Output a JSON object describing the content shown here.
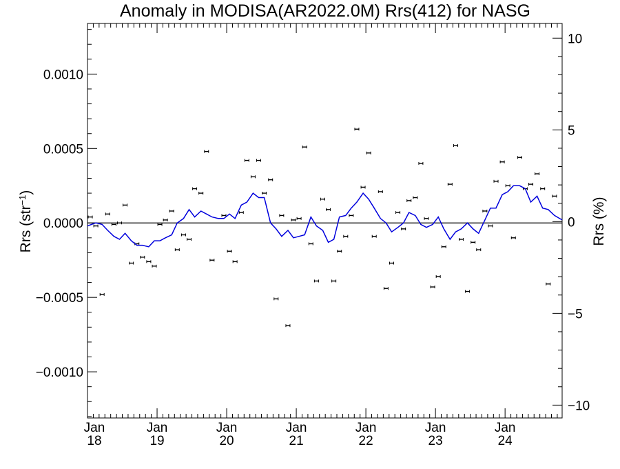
{
  "chart_data": {
    "type": "scatter",
    "title": "Anomaly in MODISA(AR2022.0M) Rrs(412) for NASG",
    "ylabel_left": "Rrs (str⁻¹)",
    "ylabel_right": "Rrs (%)",
    "x_unit": "years since 2018-01",
    "xlim": [
      0,
      6.82
    ],
    "ylim_left": [
      -0.00131,
      0.00134
    ],
    "ylim_right": [
      -10.7,
      10.8
    ],
    "x_ticks": [
      {
        "x": 0,
        "month": "Jan",
        "year": "18"
      },
      {
        "x": 1,
        "month": "Jan",
        "year": "19"
      },
      {
        "x": 2,
        "month": "Jan",
        "year": "20"
      },
      {
        "x": 3,
        "month": "Jan",
        "year": "21"
      },
      {
        "x": 4,
        "month": "Jan",
        "year": "22"
      },
      {
        "x": 5,
        "month": "Jan",
        "year": "23"
      },
      {
        "x": 6,
        "month": "Jan",
        "year": "24"
      }
    ],
    "y_ticks_left": [
      {
        "value": 0.001,
        "label": "0.0010"
      },
      {
        "value": 0.0005,
        "label": "0.0005"
      },
      {
        "value": 0.0,
        "label": "0.0000"
      },
      {
        "value": -0.0005,
        "label": "−0.0005"
      },
      {
        "value": -0.001,
        "label": "−0.0010"
      }
    ],
    "y_ticks_right": [
      {
        "value": 10,
        "label": "10"
      },
      {
        "value": 5,
        "label": "5"
      },
      {
        "value": 0,
        "label": "0"
      },
      {
        "value": -5,
        "label": "−5"
      },
      {
        "value": -10,
        "label": "−10"
      }
    ],
    "zero_line": true,
    "grid": false,
    "series": [
      {
        "kind": "points_with_errorbars",
        "color": "#000000",
        "points": [
          [
            0.04,
            4e-05
          ],
          [
            0.12,
            -2e-05
          ],
          [
            0.21,
            -0.00048
          ],
          [
            0.29,
            6e-05
          ],
          [
            0.38,
            -1e-05
          ],
          [
            0.46,
            0.0
          ],
          [
            0.54,
            0.00012
          ],
          [
            0.63,
            -0.00027
          ],
          [
            0.71,
            -0.00014
          ],
          [
            0.79,
            -0.00023
          ],
          [
            0.88,
            -0.00026
          ],
          [
            0.96,
            -0.00029
          ],
          [
            1.04,
            -1e-05
          ],
          [
            1.12,
            2e-05
          ],
          [
            1.21,
            8e-05
          ],
          [
            1.29,
            -0.00018
          ],
          [
            1.38,
            -8e-05
          ],
          [
            1.46,
            -0.00011
          ],
          [
            1.54,
            0.00023
          ],
          [
            1.63,
            0.0002
          ],
          [
            1.71,
            0.00048
          ],
          [
            1.79,
            -0.00025
          ],
          [
            1.96,
            5e-05
          ],
          [
            2.04,
            -0.00019
          ],
          [
            2.12,
            -0.00026
          ],
          [
            2.21,
            7e-05
          ],
          [
            2.29,
            0.00042
          ],
          [
            2.38,
            0.00031
          ],
          [
            2.46,
            0.00042
          ],
          [
            2.54,
            0.0002
          ],
          [
            2.63,
            0.00029
          ],
          [
            2.71,
            -0.00051
          ],
          [
            2.79,
            5e-05
          ],
          [
            2.88,
            -0.00069
          ],
          [
            2.96,
            2e-05
          ],
          [
            3.04,
            3e-05
          ],
          [
            3.12,
            0.00051
          ],
          [
            3.21,
            -0.00014
          ],
          [
            3.29,
            -0.00039
          ],
          [
            3.38,
            0.00016
          ],
          [
            3.46,
            9e-05
          ],
          [
            3.54,
            -0.00039
          ],
          [
            3.62,
            -0.00019
          ],
          [
            3.71,
            -9e-05
          ],
          [
            3.79,
            5e-05
          ],
          [
            3.87,
            0.00063
          ],
          [
            3.96,
            0.00024
          ],
          [
            4.04,
            0.00047
          ],
          [
            4.12,
            -9e-05
          ],
          [
            4.21,
            0.00021
          ],
          [
            4.29,
            -0.00044
          ],
          [
            4.37,
            -0.00027
          ],
          [
            4.46,
            7e-05
          ],
          [
            4.54,
            -4e-05
          ],
          [
            4.62,
            0.00015
          ],
          [
            4.71,
            0.00017
          ],
          [
            4.79,
            0.0004
          ],
          [
            4.87,
            3e-05
          ],
          [
            4.96,
            -0.00043
          ],
          [
            5.04,
            -0.00036
          ],
          [
            5.12,
            -0.00016
          ],
          [
            5.21,
            0.00026
          ],
          [
            5.29,
            0.00052
          ],
          [
            5.37,
            -0.00011
          ],
          [
            5.46,
            -0.00046
          ],
          [
            5.54,
            -0.00013
          ],
          [
            5.62,
            -0.00018
          ],
          [
            5.71,
            8e-05
          ],
          [
            5.79,
            -2e-05
          ],
          [
            5.87,
            0.00028
          ],
          [
            5.96,
            0.00041
          ],
          [
            6.04,
            0.00025
          ],
          [
            6.12,
            -0.0001
          ],
          [
            6.21,
            0.00044
          ],
          [
            6.29,
            0.00023
          ],
          [
            6.37,
            0.00026
          ],
          [
            6.46,
            0.00033
          ],
          [
            6.54,
            0.00023
          ],
          [
            6.62,
            -0.00041
          ],
          [
            6.71,
            0.00018
          ]
        ]
      },
      {
        "kind": "line",
        "color": "#0000dd",
        "points": [
          [
            0.0,
            -2e-05
          ],
          [
            0.12,
            0.0
          ],
          [
            0.21,
            -1e-05
          ],
          [
            0.29,
            -5e-05
          ],
          [
            0.38,
            -9e-05
          ],
          [
            0.46,
            -0.00011
          ],
          [
            0.54,
            -7e-05
          ],
          [
            0.63,
            -0.00012
          ],
          [
            0.71,
            -0.00015
          ],
          [
            0.79,
            -0.00015
          ],
          [
            0.88,
            -0.00016
          ],
          [
            0.96,
            -0.00012
          ],
          [
            1.04,
            -0.00012
          ],
          [
            1.12,
            -0.0001
          ],
          [
            1.21,
            -8e-05
          ],
          [
            1.29,
            0.0
          ],
          [
            1.38,
            3e-05
          ],
          [
            1.46,
            9e-05
          ],
          [
            1.54,
            4e-05
          ],
          [
            1.63,
            8e-05
          ],
          [
            1.71,
            6e-05
          ],
          [
            1.79,
            4e-05
          ],
          [
            1.88,
            3e-05
          ],
          [
            1.96,
            3e-05
          ],
          [
            2.04,
            6e-05
          ],
          [
            2.12,
            3e-05
          ],
          [
            2.21,
            0.00012
          ],
          [
            2.29,
            0.00014
          ],
          [
            2.38,
            0.0002
          ],
          [
            2.46,
            0.00017
          ],
          [
            2.54,
            0.00017
          ],
          [
            2.63,
            0.0
          ],
          [
            2.71,
            -4e-05
          ],
          [
            2.79,
            -9e-05
          ],
          [
            2.88,
            -5e-05
          ],
          [
            2.96,
            -0.0001
          ],
          [
            3.04,
            -9e-05
          ],
          [
            3.12,
            -8e-05
          ],
          [
            3.21,
            4e-05
          ],
          [
            3.29,
            -2e-05
          ],
          [
            3.38,
            -5e-05
          ],
          [
            3.46,
            -0.00013
          ],
          [
            3.54,
            -0.00011
          ],
          [
            3.62,
            4e-05
          ],
          [
            3.71,
            5e-05
          ],
          [
            3.79,
            0.0001
          ],
          [
            3.87,
            0.00014
          ],
          [
            3.96,
            0.0002
          ],
          [
            4.04,
            0.00016
          ],
          [
            4.12,
            0.0001
          ],
          [
            4.21,
            3e-05
          ],
          [
            4.29,
            0.0
          ],
          [
            4.37,
            -6e-05
          ],
          [
            4.46,
            -3e-05
          ],
          [
            4.54,
            0.0
          ],
          [
            4.62,
            7e-05
          ],
          [
            4.71,
            5e-05
          ],
          [
            4.79,
            -1e-05
          ],
          [
            4.87,
            -3e-05
          ],
          [
            4.96,
            -1e-05
          ],
          [
            5.04,
            4e-05
          ],
          [
            5.12,
            -4e-05
          ],
          [
            5.21,
            -0.00011
          ],
          [
            5.29,
            -6e-05
          ],
          [
            5.37,
            -4e-05
          ],
          [
            5.46,
            0.0
          ],
          [
            5.54,
            -4e-05
          ],
          [
            5.62,
            -7e-05
          ],
          [
            5.71,
            2e-05
          ],
          [
            5.79,
            0.0001
          ],
          [
            5.87,
            0.0001
          ],
          [
            5.96,
            0.00019
          ],
          [
            6.04,
            0.00021
          ],
          [
            6.12,
            0.00025
          ],
          [
            6.21,
            0.00025
          ],
          [
            6.29,
            0.00023
          ],
          [
            6.37,
            0.00014
          ],
          [
            6.46,
            0.00018
          ],
          [
            6.54,
            0.0001
          ],
          [
            6.62,
            9e-05
          ],
          [
            6.71,
            5e-05
          ],
          [
            6.82,
            2e-05
          ]
        ]
      }
    ]
  }
}
